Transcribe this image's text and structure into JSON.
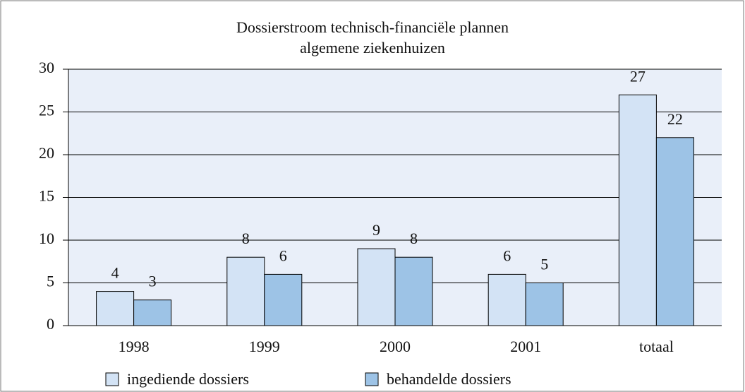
{
  "chart_data": {
    "type": "bar",
    "title": [
      "Dossierstroom technisch-financiële plannen",
      "algemene ziekenhuizen"
    ],
    "categories": [
      "1998",
      "1999",
      "2000",
      "2001",
      "totaal"
    ],
    "series": [
      {
        "name": "ingediende dossiers",
        "color": "#d3e3f5",
        "values": [
          4,
          8,
          9,
          6,
          27
        ]
      },
      {
        "name": "behandelde dossiers",
        "color": "#9dc3e6",
        "values": [
          3,
          6,
          8,
          5,
          22
        ]
      }
    ],
    "ylim": [
      0,
      30
    ],
    "yticks": [
      0,
      5,
      10,
      15,
      20,
      25,
      30
    ],
    "grid": true,
    "legend": "bottom"
  }
}
